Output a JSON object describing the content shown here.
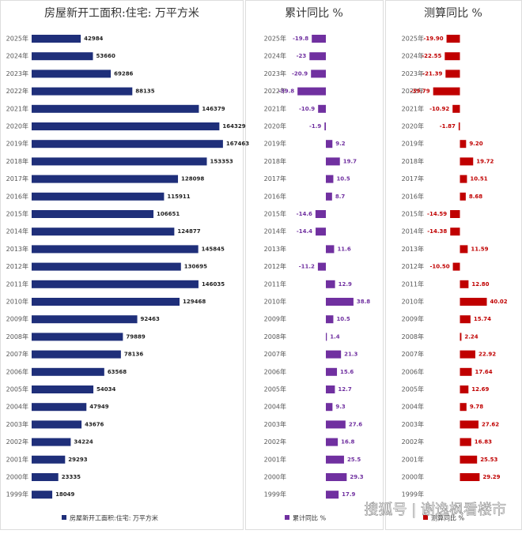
{
  "chart_data": [
    {
      "type": "hbar",
      "title": "房屋新开工面积:住宅: 万平方米",
      "categories": [
        "2025年",
        "2024年",
        "2023年",
        "2022年",
        "2021年",
        "2020年",
        "2019年",
        "2018年",
        "2017年",
        "2016年",
        "2015年",
        "2014年",
        "2013年",
        "2012年",
        "2011年",
        "2010年",
        "2009年",
        "2008年",
        "2007年",
        "2006年",
        "2005年",
        "2004年",
        "2003年",
        "2002年",
        "2001年",
        "2000年",
        "1999年"
      ],
      "series": [
        {
          "name": "房屋新开工面积:住宅: 万平方米",
          "color": "#1f2f7a",
          "values": [
            42984,
            53660,
            69286,
            88135,
            146379,
            164329,
            167463,
            153353,
            128098,
            115911,
            106651,
            124877,
            145845,
            130695,
            146035,
            129468,
            92463,
            79889,
            78136,
            63568,
            54034,
            47949,
            43676,
            34224,
            29293,
            23335,
            18049
          ]
        }
      ],
      "xlim": [
        0,
        180000
      ]
    },
    {
      "type": "hbar",
      "title": "累计同比 %",
      "categories": [
        "2025年",
        "2024年",
        "2023年",
        "2022年",
        "2021年",
        "2020年",
        "2019年",
        "2018年",
        "2017年",
        "2016年",
        "2015年",
        "2014年",
        "2013年",
        "2012年",
        "2011年",
        "2010年",
        "2009年",
        "2008年",
        "2007年",
        "2006年",
        "2005年",
        "2004年",
        "2003年",
        "2002年",
        "2001年",
        "2000年",
        "1999年"
      ],
      "series": [
        {
          "name": "累计同比 %",
          "color": "#7030a0",
          "values": [
            -19.8,
            -23,
            -20.9,
            -39.8,
            -10.9,
            -1.9,
            9.2,
            19.7,
            10.5,
            8.7,
            -14.6,
            -14.4,
            11.6,
            -11.2,
            12.9,
            38.8,
            10.5,
            1.4,
            21.3,
            15.6,
            12.7,
            9.3,
            27.6,
            16.8,
            25.5,
            29.3,
            17.9
          ]
        }
      ],
      "xlim": [
        -80,
        80
      ]
    },
    {
      "type": "hbar",
      "title": "测算同比 %",
      "categories": [
        "2025年",
        "2024年",
        "2023年",
        "2022年",
        "2021年",
        "2020年",
        "2019年",
        "2018年",
        "2017年",
        "2016年",
        "2015年",
        "2014年",
        "2013年",
        "2012年",
        "2011年",
        "2010年",
        "2009年",
        "2008年",
        "2007年",
        "2006年",
        "2005年",
        "2004年",
        "2003年",
        "2002年",
        "2001年",
        "2000年",
        "1999年"
      ],
      "series": [
        {
          "name": "测算同比 %",
          "color": "#c00000",
          "values": [
            -19.9,
            -22.55,
            -21.39,
            -39.79,
            -10.92,
            -1.87,
            9.2,
            19.72,
            10.51,
            8.68,
            -14.59,
            -14.38,
            11.59,
            -10.5,
            12.8,
            40.02,
            15.74,
            2.24,
            22.92,
            17.64,
            12.69,
            9.78,
            27.62,
            16.83,
            25.53,
            29.29,
            null
          ],
          "value_labels": [
            "-19.90",
            "-22.55",
            "-21.39",
            "-39.79",
            "-10.92",
            "-1.87",
            "9.20",
            "19.72",
            "10.51",
            "8.68",
            "-14.59",
            "-14.38",
            "11.59",
            "-10.50",
            "12.80",
            "40.02",
            "15.74",
            "2.24",
            "22.92",
            "17.64",
            "12.69",
            "9.78",
            "27.62",
            "16.83",
            "25.53",
            "29.29",
            null
          ]
        }
      ],
      "xlim": [
        -90,
        90
      ]
    }
  ],
  "watermark": "搜狐号 | 谢逸枫看楼市"
}
